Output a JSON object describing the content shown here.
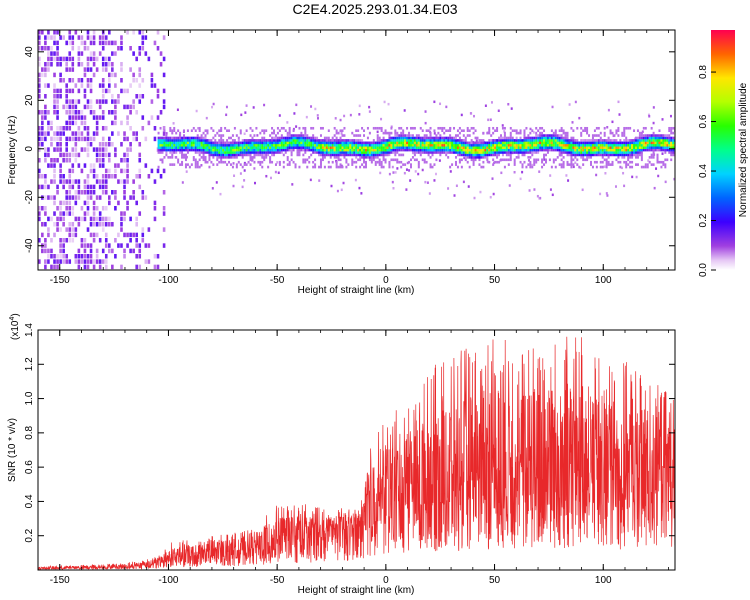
{
  "figure_title": "C2E4.2025.293.01.34.E03",
  "colors": {
    "snr_line": "#e8282a",
    "axis": "#000000",
    "background": "#ffffff"
  },
  "chart_data": [
    {
      "type": "heatmap",
      "title": "C2E4.2025.293.01.34.E03",
      "xlabel": "Height of straight line (km)",
      "ylabel": "Frequency (Hz)",
      "xlim": [
        -160,
        133
      ],
      "ylim": [
        -50,
        49
      ],
      "xticks": [
        -150,
        -100,
        -50,
        0,
        50,
        100
      ],
      "yticks": [
        -40,
        -20,
        0,
        20,
        40
      ],
      "xtick_labels": [
        "-150",
        "-100",
        "-50",
        "0",
        "50",
        "100"
      ],
      "ytick_labels": [
        "-40",
        "-20",
        "0",
        "20",
        "40"
      ],
      "colorbar": {
        "label": "Normalized spectral amplitude",
        "range": [
          0,
          0.97
        ],
        "ticks": [
          0.0,
          0.2,
          0.4,
          0.6,
          0.8
        ],
        "tick_labels": [
          "0.0",
          "0.2",
          "0.4",
          "0.6",
          "0.8"
        ],
        "colormap": "rainbow (white-violet-blue-cyan-green-yellow-red)"
      },
      "features": [
        {
          "name": "diffuse noise region",
          "x_range": [
            -160,
            -102
          ],
          "freq_range": [
            -50,
            49
          ],
          "amplitude": 0.1
        },
        {
          "name": "signal band",
          "x_range": [
            -105,
            133
          ],
          "center_freq": 0.5,
          "half_width_hz": 5,
          "peak_amplitude": 0.9
        }
      ]
    },
    {
      "type": "line",
      "xlabel": "Height of straight line (km)",
      "ylabel": "SNR (10 * v/v)",
      "y_scale_label": "(x10",
      "y_scale_exponent": "4",
      "y_scale_suffix": ")",
      "xlim": [
        -160,
        133
      ],
      "ylim": [
        0,
        1.4
      ],
      "xticks": [
        -150,
        -100,
        -50,
        0,
        50,
        100
      ],
      "yticks": [
        0.2,
        0.4,
        0.6,
        0.8,
        1.0,
        1.2,
        1.4
      ],
      "xtick_labels": [
        "-150",
        "-100",
        "-50",
        "0",
        "50",
        "100"
      ],
      "ytick_labels": [
        "0.2",
        "0.4",
        "0.6",
        "0.8",
        "1.0",
        "1.2",
        "1.4"
      ],
      "series": [
        {
          "name": "SNR",
          "envelope_x": [
            -160,
            -120,
            -105,
            -100,
            -80,
            -60,
            -52,
            -40,
            -30,
            -20,
            -12,
            -8,
            -5,
            0,
            10,
            15,
            20,
            30,
            40,
            50,
            60,
            70,
            80,
            90,
            100,
            110,
            120,
            133
          ],
          "envelope_mean": [
            0.01,
            0.02,
            0.04,
            0.07,
            0.1,
            0.13,
            0.18,
            0.2,
            0.22,
            0.25,
            0.27,
            0.38,
            0.42,
            0.44,
            0.46,
            0.48,
            0.5,
            0.54,
            0.58,
            0.6,
            0.62,
            0.62,
            0.6,
            0.6,
            0.58,
            0.6,
            0.62,
            0.64
          ],
          "envelope_max": [
            0.02,
            0.04,
            0.08,
            0.16,
            0.2,
            0.24,
            0.38,
            0.4,
            0.37,
            0.36,
            0.35,
            0.72,
            0.78,
            0.88,
            1.02,
            1.05,
            1.18,
            1.25,
            1.32,
            1.4,
            1.3,
            1.38,
            1.4,
            1.36,
            1.28,
            1.22,
            1.14,
            1.0
          ]
        }
      ]
    }
  ]
}
